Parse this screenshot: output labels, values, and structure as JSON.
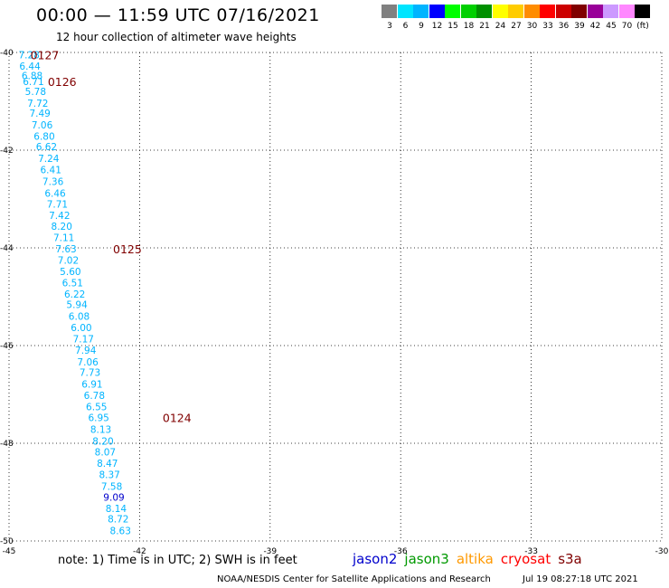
{
  "header": {
    "title": "00:00 — 11:59 UTC 07/16/2021",
    "subtitle": "12 hour collection of altimeter wave heights"
  },
  "legend": {
    "colors": [
      "#808080",
      "#00e5ff",
      "#00b4ff",
      "#0000ff",
      "#00ff00",
      "#00d000",
      "#009000",
      "#ffff00",
      "#ffcc00",
      "#ff8c00",
      "#ff0000",
      "#cc0000",
      "#800000",
      "#990099",
      "#cc99ff",
      "#ff88ff",
      "#000000"
    ],
    "labels": [
      "3",
      "6",
      "9",
      "12",
      "15",
      "18",
      "21",
      "24",
      "27",
      "30",
      "33",
      "36",
      "39",
      "42",
      "45",
      "70",
      "(ft)"
    ]
  },
  "footer": {
    "note": "note: 1) Time is in UTC; 2) SWH is in feet",
    "credit": "NOAA/NESDIS Center for Satellite Applications and Research",
    "timestamp": "Jul 19 08:27:18 UTC 2021",
    "satellites": [
      {
        "name": "jason2",
        "color": "#0000cc"
      },
      {
        "name": "jason3",
        "color": "#009900"
      },
      {
        "name": "altika",
        "color": "#ff9900"
      },
      {
        "name": "cryosat",
        "color": "#ff0000"
      },
      {
        "name": "s3a",
        "color": "#800000"
      }
    ]
  },
  "chart_data": {
    "type": "scatter",
    "xlim": [
      -45,
      -30
    ],
    "ylim": [
      -50,
      -40
    ],
    "x_ticks": [
      -45,
      -42,
      -39,
      -36,
      -33,
      -30
    ],
    "y_ticks": [
      -40,
      -42,
      -44,
      -46,
      -48,
      -50
    ],
    "x_tick_labels": [
      "-45",
      "-42",
      "-39",
      "-36",
      "-33",
      "-30"
    ],
    "y_tick_labels": [
      "-40",
      "-42",
      "-44",
      "-46",
      "-48",
      "-50"
    ],
    "grid": true,
    "series": [
      {
        "color": "#00b4ff",
        "points": [
          {
            "lon": -44.54,
            "lat": -40.05,
            "value": "7.28"
          },
          {
            "lon": -44.52,
            "lat": -40.28,
            "value": "6.44"
          },
          {
            "lon": -44.47,
            "lat": -40.47,
            "value": "6.88"
          },
          {
            "lon": -44.44,
            "lat": -40.59,
            "value": "6.71"
          },
          {
            "lon": -44.39,
            "lat": -40.8,
            "value": "5.78"
          },
          {
            "lon": -44.34,
            "lat": -41.04,
            "value": "7.72"
          },
          {
            "lon": -44.29,
            "lat": -41.24,
            "value": "7.49"
          },
          {
            "lon": -44.24,
            "lat": -41.48,
            "value": "7.06"
          },
          {
            "lon": -44.19,
            "lat": -41.71,
            "value": "6.80"
          },
          {
            "lon": -44.14,
            "lat": -41.93,
            "value": "6.62"
          },
          {
            "lon": -44.09,
            "lat": -42.17,
            "value": "7.24"
          },
          {
            "lon": -44.04,
            "lat": -42.4,
            "value": "6.41"
          },
          {
            "lon": -43.99,
            "lat": -42.64,
            "value": "7.36"
          },
          {
            "lon": -43.94,
            "lat": -42.88,
            "value": "6.46"
          },
          {
            "lon": -43.89,
            "lat": -43.1,
            "value": "7.71"
          },
          {
            "lon": -43.84,
            "lat": -43.33,
            "value": "7.42"
          },
          {
            "lon": -43.79,
            "lat": -43.56,
            "value": "8.20"
          },
          {
            "lon": -43.74,
            "lat": -43.79,
            "value": "7.11"
          },
          {
            "lon": -43.69,
            "lat": -44.02,
            "value": "7.63"
          },
          {
            "lon": -43.64,
            "lat": -44.25,
            "value": "7.02"
          },
          {
            "lon": -43.59,
            "lat": -44.48,
            "value": "5.60"
          },
          {
            "lon": -43.54,
            "lat": -44.71,
            "value": "6.51"
          },
          {
            "lon": -43.49,
            "lat": -44.94,
            "value": "6.22"
          },
          {
            "lon": -43.44,
            "lat": -45.16,
            "value": "5.94"
          },
          {
            "lon": -43.39,
            "lat": -45.4,
            "value": "6.08"
          },
          {
            "lon": -43.34,
            "lat": -45.63,
            "value": "6.00"
          },
          {
            "lon": -43.29,
            "lat": -45.86,
            "value": "7.17"
          },
          {
            "lon": -43.24,
            "lat": -46.09,
            "value": "7.94"
          },
          {
            "lon": -43.19,
            "lat": -46.33,
            "value": "7.06"
          },
          {
            "lon": -43.14,
            "lat": -46.55,
            "value": "7.73"
          },
          {
            "lon": -43.09,
            "lat": -46.79,
            "value": "6.91"
          },
          {
            "lon": -43.04,
            "lat": -47.02,
            "value": "6.78"
          },
          {
            "lon": -42.99,
            "lat": -47.25,
            "value": "6.55"
          },
          {
            "lon": -42.94,
            "lat": -47.47,
            "value": "6.95"
          },
          {
            "lon": -42.89,
            "lat": -47.71,
            "value": "8.13"
          },
          {
            "lon": -42.84,
            "lat": -47.95,
            "value": "8.20"
          },
          {
            "lon": -42.79,
            "lat": -48.18,
            "value": "8.07"
          },
          {
            "lon": -42.74,
            "lat": -48.41,
            "value": "8.47"
          },
          {
            "lon": -42.69,
            "lat": -48.64,
            "value": "8.37"
          },
          {
            "lon": -42.64,
            "lat": -48.88,
            "value": "7.58"
          },
          {
            "lon": -42.54,
            "lat": -49.33,
            "value": "8.14"
          },
          {
            "lon": -42.49,
            "lat": -49.55,
            "value": "8.72"
          },
          {
            "lon": -42.44,
            "lat": -49.79,
            "value": "8.63"
          }
        ]
      },
      {
        "color": "#0000cc",
        "points": [
          {
            "lon": -42.59,
            "lat": -49.1,
            "value": "9.09"
          }
        ]
      }
    ],
    "annotations": [
      {
        "lon": -44.18,
        "lat": -40.05,
        "text": "0127",
        "color": "#800000"
      },
      {
        "lon": -43.78,
        "lat": -40.59,
        "text": "0126",
        "color": "#800000"
      },
      {
        "lon": -42.28,
        "lat": -44.02,
        "text": "0125",
        "color": "#800000"
      },
      {
        "lon": -41.14,
        "lat": -47.47,
        "text": "0124",
        "color": "#800000"
      }
    ]
  }
}
